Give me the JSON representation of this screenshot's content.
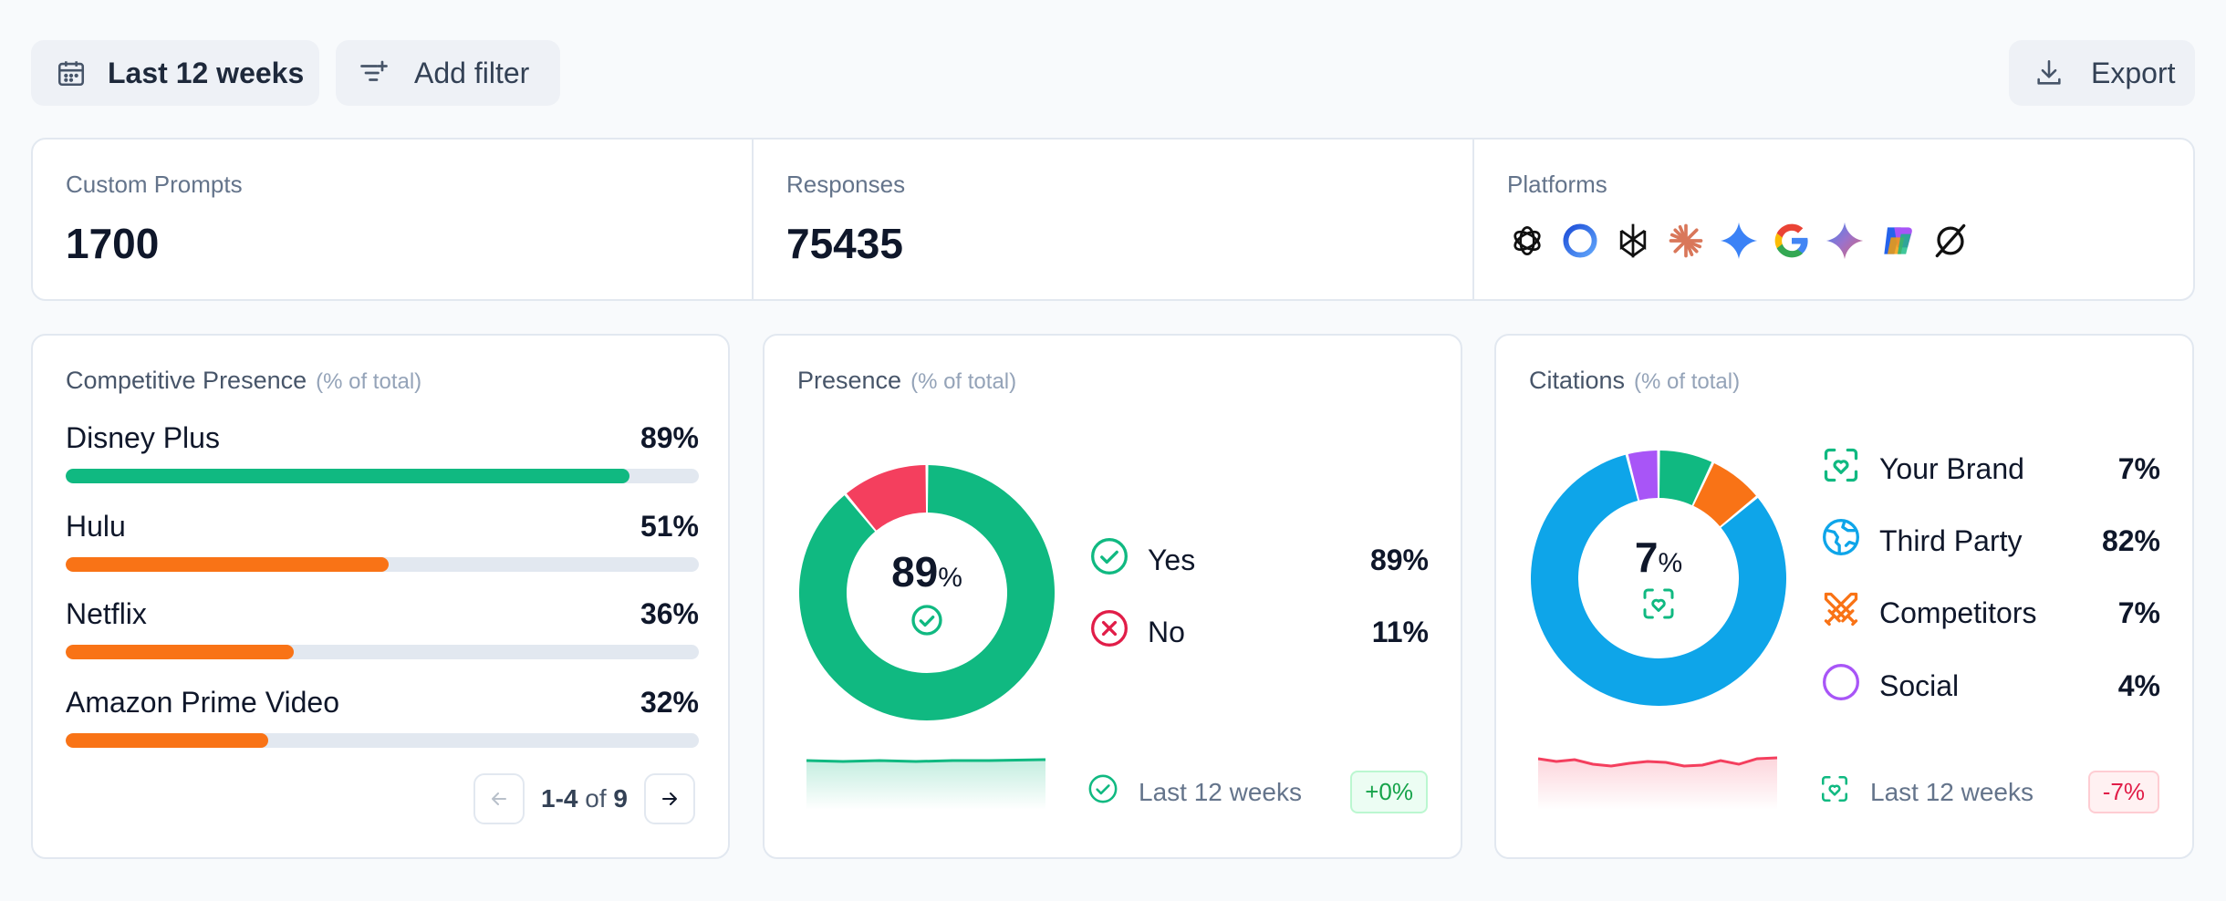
{
  "toolbar": {
    "date_label": "Last 12 weeks",
    "filter_label": "Add filter",
    "export_label": "Export"
  },
  "stats": {
    "custom_prompts": {
      "label": "Custom Prompts",
      "value": "1700"
    },
    "responses": {
      "label": "Responses",
      "value": "75435"
    },
    "platforms": {
      "label": "Platforms",
      "icons": [
        "openai-icon",
        "copilot-ring-icon",
        "perplexity-icon",
        "claude-icon",
        "gemini-icon",
        "google-icon",
        "gemini-sparkle-icon",
        "microsoft-copilot-icon",
        "grok-icon"
      ]
    }
  },
  "competitive": {
    "title": "Competitive Presence",
    "subtitle": "(% of total)",
    "items": [
      {
        "name": "Disney Plus",
        "pct": "89%",
        "value": 89,
        "color": "#10b981"
      },
      {
        "name": "Hulu",
        "pct": "51%",
        "value": 51,
        "color": "#f97316"
      },
      {
        "name": "Netflix",
        "pct": "36%",
        "value": 36,
        "color": "#f97316"
      },
      {
        "name": "Amazon Prime Video",
        "pct": "32%",
        "value": 32,
        "color": "#f97316"
      }
    ],
    "pager": {
      "range": "1-4",
      "of": "of",
      "total": "9"
    }
  },
  "presence": {
    "title": "Presence",
    "subtitle": "(% of total)",
    "center_value": "89",
    "center_unit": "%",
    "segments": [
      {
        "name": "Yes",
        "value": 89,
        "pct": "89%",
        "color": "#10b981"
      },
      {
        "name": "No",
        "value": 11,
        "pct": "11%",
        "color": "#f43f5e"
      }
    ],
    "footer": {
      "label": "Last 12 weeks",
      "change": "+0%"
    }
  },
  "citations": {
    "title": "Citations",
    "subtitle": "(% of total)",
    "center_value": "7",
    "center_unit": "%",
    "segments": [
      {
        "name": "Your Brand",
        "value": 7,
        "pct": "7%",
        "color": "#10b981"
      },
      {
        "name": "Competitors",
        "value": 7,
        "pct": "7%",
        "color": "#f97316"
      },
      {
        "name": "Third Party",
        "value": 82,
        "pct": "82%",
        "color": "#0ea5e9"
      },
      {
        "name": "Social",
        "value": 4,
        "pct": "4%",
        "color": "#a855f7"
      }
    ],
    "legend": [
      {
        "name": "Your Brand",
        "pct": "7%",
        "color": "#10b981"
      },
      {
        "name": "Third Party",
        "pct": "82%",
        "color": "#0ea5e9"
      },
      {
        "name": "Competitors",
        "pct": "7%",
        "color": "#f97316"
      },
      {
        "name": "Social",
        "pct": "4%",
        "color": "#a855f7"
      }
    ],
    "footer": {
      "label": "Last 12 weeks",
      "change": "-7%"
    }
  }
}
